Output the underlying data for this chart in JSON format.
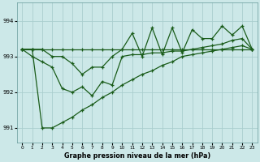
{
  "x": [
    0,
    1,
    2,
    3,
    4,
    5,
    6,
    7,
    8,
    9,
    10,
    11,
    12,
    13,
    14,
    15,
    16,
    17,
    18,
    19,
    20,
    21,
    22,
    23
  ],
  "y_flat": [
    993.2,
    993.2,
    993.2,
    993.2,
    993.2,
    993.2,
    993.2,
    993.2,
    993.2,
    993.2,
    993.2,
    993.2,
    993.2,
    993.2,
    993.2,
    993.2,
    993.2,
    993.2,
    993.2,
    993.2,
    993.2,
    993.2,
    993.2,
    993.2
  ],
  "y_diagonal": [
    993.2,
    993.2,
    991.0,
    991.0,
    991.15,
    991.3,
    991.5,
    991.65,
    991.85,
    992.0,
    992.2,
    992.35,
    992.5,
    992.6,
    992.75,
    992.85,
    993.0,
    993.05,
    993.1,
    993.15,
    993.2,
    993.25,
    993.3,
    993.2
  ],
  "y_envelope": [
    993.2,
    993.0,
    992.85,
    992.7,
    992.1,
    992.0,
    992.15,
    991.9,
    992.3,
    992.2,
    993.0,
    993.05,
    993.05,
    993.1,
    993.1,
    993.15,
    993.15,
    993.2,
    993.25,
    993.3,
    993.35,
    993.45,
    993.5,
    993.2
  ],
  "y_zigzag": [
    993.2,
    993.2,
    993.2,
    993.0,
    993.0,
    992.8,
    992.5,
    992.7,
    992.7,
    993.0,
    993.2,
    993.65,
    993.0,
    993.8,
    993.05,
    993.8,
    993.1,
    993.75,
    993.5,
    993.5,
    993.85,
    993.6,
    993.85,
    993.2
  ],
  "background_color": "#cce8e8",
  "line_color": "#1a5c1a",
  "grid_color": "#aacece",
  "xlabel": "Graphe pression niveau de la mer (hPa)",
  "ylim": [
    990.6,
    994.5
  ],
  "xlim": [
    -0.5,
    23.5
  ],
  "yticks": [
    991,
    992,
    993,
    994
  ],
  "xticks": [
    0,
    1,
    2,
    3,
    4,
    5,
    6,
    7,
    8,
    9,
    10,
    11,
    12,
    13,
    14,
    15,
    16,
    17,
    18,
    19,
    20,
    21,
    22,
    23
  ]
}
